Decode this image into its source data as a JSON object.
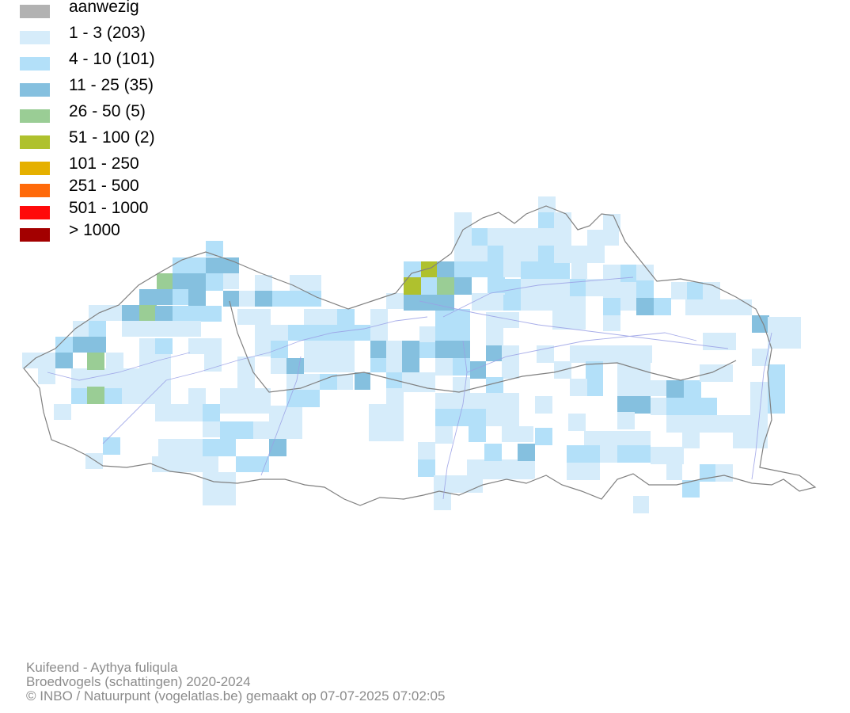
{
  "legend": {
    "items": [
      {
        "label": "aanwezig",
        "color": "#b2b2b2"
      },
      {
        "label": "1 - 3 (203)",
        "color": "#d6ecfa"
      },
      {
        "label": "4 - 10 (101)",
        "color": "#b3e0f9"
      },
      {
        "label": "11 - 25 (35)",
        "color": "#85c0df"
      },
      {
        "label": "26 - 50 (5)",
        "color": "#9acd95"
      },
      {
        "label": "51 - 100 (2)",
        "color": "#afc12e"
      },
      {
        "label": "101 - 250",
        "color": "#e5b000"
      },
      {
        "label": "251 - 500",
        "color": "#ff6a0a"
      },
      {
        "label": "501 - 1000",
        "color": "#ff0a0a"
      },
      {
        "label": "> 1000",
        "color": "#a30000"
      }
    ]
  },
  "map": {
    "region": "Vlaanderen",
    "border_color": "#808080",
    "river_color": "#9aa0e6"
  },
  "footer": {
    "species": "Kuifeend - Aythya fuliqula",
    "dataset": "Broedvogels (schattingen) 2020-2024",
    "credit": "© INBO / Natuurpunt (vogelatlas.be) gemaakt op 07-07-2025 07:02:05"
  }
}
